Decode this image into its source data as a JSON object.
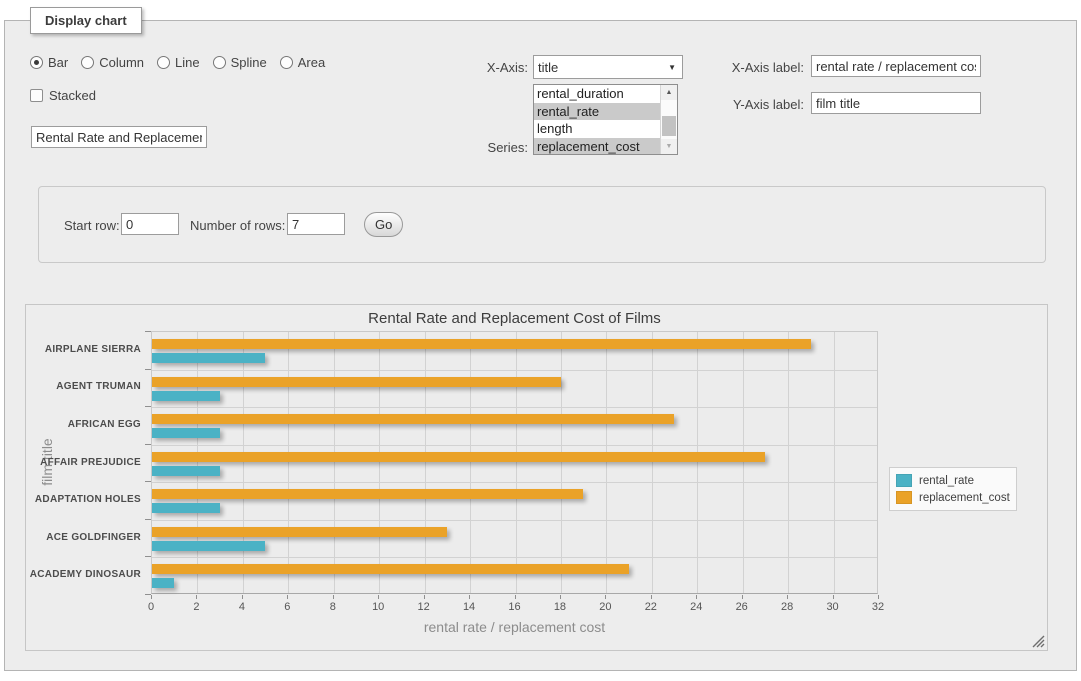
{
  "fieldset": {
    "legend": "Display chart"
  },
  "chart_type": {
    "options": [
      "Bar",
      "Column",
      "Line",
      "Spline",
      "Area"
    ],
    "selected": "Bar"
  },
  "stacked": {
    "label": "Stacked",
    "checked": false
  },
  "title_input": {
    "value": "Rental Rate and Replacement Cost of Films"
  },
  "x_axis": {
    "label": "X-Axis:",
    "selected_value": "title"
  },
  "series_select": {
    "label": "Series:",
    "options": [
      {
        "label": "rental_duration",
        "selected": false
      },
      {
        "label": "rental_rate",
        "selected": true
      },
      {
        "label": "length",
        "selected": false
      },
      {
        "label": "replacement_cost",
        "selected": true
      }
    ]
  },
  "x_axis_label_field": {
    "label": "X-Axis label:",
    "value": "rental rate / replacement cost"
  },
  "y_axis_label_field": {
    "label": "Y-Axis label:",
    "value": "film title"
  },
  "rows_form": {
    "start_row_label": "Start row:",
    "start_row_value": "0",
    "num_rows_label": "Number of rows:",
    "num_rows_value": "7",
    "go_label": "Go"
  },
  "chart_data": {
    "type": "bar",
    "orientation": "horizontal",
    "title": "Rental Rate and Replacement Cost of Films",
    "categories": [
      "AIRPLANE SIERRA",
      "AGENT TRUMAN",
      "AFRICAN EGG",
      "AFFAIR PREJUDICE",
      "ADAPTATION HOLES",
      "ACE GOLDFINGER",
      "ACADEMY DINOSAUR"
    ],
    "series": [
      {
        "name": "rental_rate",
        "color": "#4bb2c5",
        "values": [
          4.99,
          2.99,
          2.99,
          2.99,
          2.99,
          4.99,
          0.99
        ]
      },
      {
        "name": "replacement_cost",
        "color": "#EAA228",
        "values": [
          28.99,
          17.99,
          22.99,
          26.99,
          18.99,
          12.99,
          20.99
        ]
      }
    ],
    "xlabel": "rental rate / replacement cost",
    "ylabel": "film title",
    "xlim": [
      0,
      32
    ],
    "xticks": [
      0,
      2,
      4,
      6,
      8,
      10,
      12,
      14,
      16,
      18,
      20,
      22,
      24,
      26,
      28,
      30,
      32
    ],
    "grid": true,
    "legend_position": "right"
  }
}
